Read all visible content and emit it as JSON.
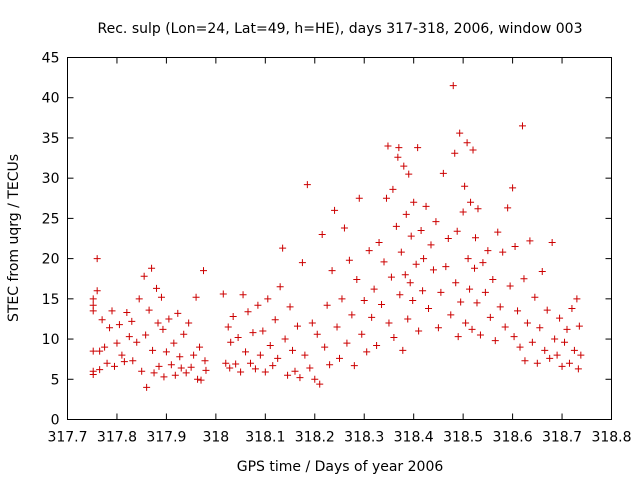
{
  "chart_data": {
    "type": "scatter",
    "title": "Rec. sulp (Lon=24, Lat=49, h=HE), days 317-318, 2006, window 003",
    "xlabel": "GPS time / Days of year 2006",
    "ylabel": "STEC from uqrg / TECUs",
    "xlim": [
      317.7,
      318.8
    ],
    "ylim": [
      0,
      45
    ],
    "xticks": [
      "317.7",
      "317.8",
      "317.9",
      "318",
      "318.1",
      "318.2",
      "318.3",
      "318.4",
      "318.5",
      "318.6",
      "318.7",
      "318.8"
    ],
    "yticks": [
      "0",
      "5",
      "10",
      "15",
      "20",
      "25",
      "30",
      "35",
      "40",
      "45"
    ],
    "xtick_values": [
      317.7,
      317.8,
      317.9,
      318.0,
      318.1,
      318.2,
      318.3,
      318.4,
      318.5,
      318.6,
      318.7,
      318.8
    ],
    "ytick_values": [
      0,
      5,
      10,
      15,
      20,
      25,
      30,
      35,
      40,
      45
    ],
    "grid": false,
    "marker": "+",
    "color": "#cc0000",
    "points": [
      [
        317.752,
        15.0
      ],
      [
        317.752,
        14.2
      ],
      [
        317.752,
        13.5
      ],
      [
        317.752,
        8.5
      ],
      [
        317.752,
        6.0
      ],
      [
        317.752,
        5.6
      ],
      [
        317.76,
        20.0
      ],
      [
        317.76,
        16.0
      ],
      [
        317.765,
        8.5
      ],
      [
        317.765,
        6.2
      ],
      [
        317.77,
        12.4
      ],
      [
        317.775,
        9.0
      ],
      [
        317.78,
        7.0
      ],
      [
        317.785,
        11.4
      ],
      [
        317.79,
        13.5
      ],
      [
        317.795,
        6.6
      ],
      [
        317.8,
        9.5
      ],
      [
        317.805,
        11.8
      ],
      [
        317.81,
        8.0
      ],
      [
        317.815,
        7.2
      ],
      [
        317.82,
        13.3
      ],
      [
        317.825,
        10.3
      ],
      [
        317.83,
        12.2
      ],
      [
        317.832,
        7.3
      ],
      [
        317.84,
        9.6
      ],
      [
        317.845,
        15.0
      ],
      [
        317.85,
        6.0
      ],
      [
        317.855,
        17.8
      ],
      [
        317.858,
        10.5
      ],
      [
        317.86,
        4.0
      ],
      [
        317.865,
        13.6
      ],
      [
        317.87,
        18.8
      ],
      [
        317.872,
        8.6
      ],
      [
        317.875,
        5.8
      ],
      [
        317.88,
        16.3
      ],
      [
        317.883,
        12.0
      ],
      [
        317.885,
        6.6
      ],
      [
        317.89,
        15.2
      ],
      [
        317.893,
        11.2
      ],
      [
        317.895,
        5.3
      ],
      [
        317.9,
        8.4
      ],
      [
        317.905,
        12.5
      ],
      [
        317.91,
        6.8
      ],
      [
        317.915,
        9.5
      ],
      [
        317.918,
        5.5
      ],
      [
        317.923,
        13.2
      ],
      [
        317.927,
        7.8
      ],
      [
        317.93,
        6.4
      ],
      [
        317.935,
        10.6
      ],
      [
        317.94,
        5.8
      ],
      [
        317.945,
        12.0
      ],
      [
        317.95,
        6.5
      ],
      [
        317.955,
        8.0
      ],
      [
        317.96,
        15.2
      ],
      [
        317.963,
        5.0
      ],
      [
        317.967,
        9.0
      ],
      [
        317.97,
        4.9
      ],
      [
        317.975,
        18.5
      ],
      [
        317.978,
        7.3
      ],
      [
        317.98,
        6.1
      ],
      [
        318.015,
        15.6
      ],
      [
        318.02,
        7.0
      ],
      [
        318.025,
        11.5
      ],
      [
        318.028,
        6.4
      ],
      [
        318.03,
        9.6
      ],
      [
        318.035,
        12.8
      ],
      [
        318.04,
        6.9
      ],
      [
        318.045,
        10.2
      ],
      [
        318.05,
        5.9
      ],
      [
        318.055,
        15.5
      ],
      [
        318.06,
        8.4
      ],
      [
        318.065,
        13.4
      ],
      [
        318.07,
        7.0
      ],
      [
        318.075,
        10.8
      ],
      [
        318.08,
        6.3
      ],
      [
        318.085,
        14.2
      ],
      [
        318.09,
        8.0
      ],
      [
        318.095,
        11.0
      ],
      [
        318.1,
        5.9
      ],
      [
        318.105,
        15.0
      ],
      [
        318.11,
        9.2
      ],
      [
        318.115,
        6.7
      ],
      [
        318.12,
        12.4
      ],
      [
        318.125,
        7.6
      ],
      [
        318.13,
        16.5
      ],
      [
        318.135,
        21.3
      ],
      [
        318.14,
        10.0
      ],
      [
        318.145,
        5.5
      ],
      [
        318.15,
        14.0
      ],
      [
        318.155,
        8.6
      ],
      [
        318.16,
        6.0
      ],
      [
        318.165,
        11.6
      ],
      [
        318.17,
        5.2
      ],
      [
        318.175,
        19.5
      ],
      [
        318.18,
        8.0
      ],
      [
        318.185,
        29.2
      ],
      [
        318.19,
        6.4
      ],
      [
        318.195,
        12.0
      ],
      [
        318.2,
        5.0
      ],
      [
        318.205,
        10.6
      ],
      [
        318.21,
        4.4
      ],
      [
        318.215,
        23.0
      ],
      [
        318.22,
        9.0
      ],
      [
        318.225,
        14.2
      ],
      [
        318.23,
        6.8
      ],
      [
        318.235,
        18.5
      ],
      [
        318.24,
        26.0
      ],
      [
        318.245,
        11.5
      ],
      [
        318.25,
        7.6
      ],
      [
        318.255,
        15.0
      ],
      [
        318.26,
        23.8
      ],
      [
        318.265,
        9.5
      ],
      [
        318.27,
        19.8
      ],
      [
        318.275,
        13.0
      ],
      [
        318.28,
        6.7
      ],
      [
        318.285,
        17.4
      ],
      [
        318.29,
        27.5
      ],
      [
        318.295,
        10.6
      ],
      [
        318.3,
        14.8
      ],
      [
        318.305,
        8.4
      ],
      [
        318.31,
        21.0
      ],
      [
        318.315,
        12.7
      ],
      [
        318.32,
        16.2
      ],
      [
        318.325,
        9.2
      ],
      [
        318.33,
        22.0
      ],
      [
        318.335,
        14.3
      ],
      [
        318.34,
        19.6
      ],
      [
        318.345,
        27.5
      ],
      [
        318.348,
        34.0
      ],
      [
        318.35,
        12.0
      ],
      [
        318.355,
        17.7
      ],
      [
        318.358,
        28.6
      ],
      [
        318.36,
        10.2
      ],
      [
        318.365,
        24.0
      ],
      [
        318.368,
        32.6
      ],
      [
        318.37,
        33.8
      ],
      [
        318.372,
        15.5
      ],
      [
        318.375,
        20.8
      ],
      [
        318.378,
        8.6
      ],
      [
        318.38,
        31.5
      ],
      [
        318.383,
        18.0
      ],
      [
        318.385,
        25.5
      ],
      [
        318.388,
        12.5
      ],
      [
        318.39,
        30.5
      ],
      [
        318.393,
        17.0
      ],
      [
        318.395,
        22.8
      ],
      [
        318.398,
        14.8
      ],
      [
        318.4,
        27.0
      ],
      [
        318.405,
        19.3
      ],
      [
        318.408,
        33.8
      ],
      [
        318.41,
        11.0
      ],
      [
        318.415,
        23.5
      ],
      [
        318.418,
        16.0
      ],
      [
        318.42,
        20.0
      ],
      [
        318.425,
        26.5
      ],
      [
        318.43,
        13.8
      ],
      [
        318.435,
        21.7
      ],
      [
        318.44,
        18.6
      ],
      [
        318.445,
        24.6
      ],
      [
        318.45,
        11.4
      ],
      [
        318.455,
        15.8
      ],
      [
        318.46,
        30.6
      ],
      [
        318.465,
        19.0
      ],
      [
        318.47,
        22.5
      ],
      [
        318.475,
        13.0
      ],
      [
        318.48,
        41.5
      ],
      [
        318.483,
        33.1
      ],
      [
        318.485,
        17.0
      ],
      [
        318.488,
        23.4
      ],
      [
        318.49,
        10.3
      ],
      [
        318.493,
        35.6
      ],
      [
        318.495,
        14.6
      ],
      [
        318.5,
        25.8
      ],
      [
        318.503,
        29.0
      ],
      [
        318.505,
        12.0
      ],
      [
        318.508,
        34.4
      ],
      [
        318.51,
        20.0
      ],
      [
        318.513,
        16.2
      ],
      [
        318.515,
        27.0
      ],
      [
        318.518,
        11.2
      ],
      [
        318.52,
        33.5
      ],
      [
        318.523,
        18.8
      ],
      [
        318.525,
        22.6
      ],
      [
        318.528,
        14.5
      ],
      [
        318.53,
        26.2
      ],
      [
        318.535,
        10.5
      ],
      [
        318.54,
        19.5
      ],
      [
        318.545,
        15.8
      ],
      [
        318.55,
        21.0
      ],
      [
        318.555,
        12.7
      ],
      [
        318.56,
        17.4
      ],
      [
        318.565,
        9.8
      ],
      [
        318.57,
        23.3
      ],
      [
        318.575,
        14.0
      ],
      [
        318.58,
        20.8
      ],
      [
        318.585,
        11.5
      ],
      [
        318.59,
        26.3
      ],
      [
        318.595,
        16.6
      ],
      [
        318.6,
        28.8
      ],
      [
        318.603,
        10.3
      ],
      [
        318.605,
        21.5
      ],
      [
        318.61,
        13.5
      ],
      [
        318.615,
        9.0
      ],
      [
        318.62,
        36.5
      ],
      [
        318.623,
        17.5
      ],
      [
        318.625,
        7.3
      ],
      [
        318.63,
        12.0
      ],
      [
        318.635,
        22.2
      ],
      [
        318.64,
        9.6
      ],
      [
        318.645,
        15.2
      ],
      [
        318.65,
        7.0
      ],
      [
        318.655,
        11.4
      ],
      [
        318.66,
        18.4
      ],
      [
        318.665,
        8.6
      ],
      [
        318.67,
        13.6
      ],
      [
        318.675,
        7.6
      ],
      [
        318.68,
        22.0
      ],
      [
        318.685,
        10.0
      ],
      [
        318.69,
        8.0
      ],
      [
        318.695,
        12.6
      ],
      [
        318.7,
        6.6
      ],
      [
        318.705,
        9.6
      ],
      [
        318.71,
        11.2
      ],
      [
        318.715,
        7.0
      ],
      [
        318.72,
        13.8
      ],
      [
        318.725,
        8.6
      ],
      [
        318.73,
        15.0
      ],
      [
        318.733,
        6.3
      ],
      [
        318.735,
        11.6
      ],
      [
        318.738,
        8.0
      ]
    ]
  }
}
